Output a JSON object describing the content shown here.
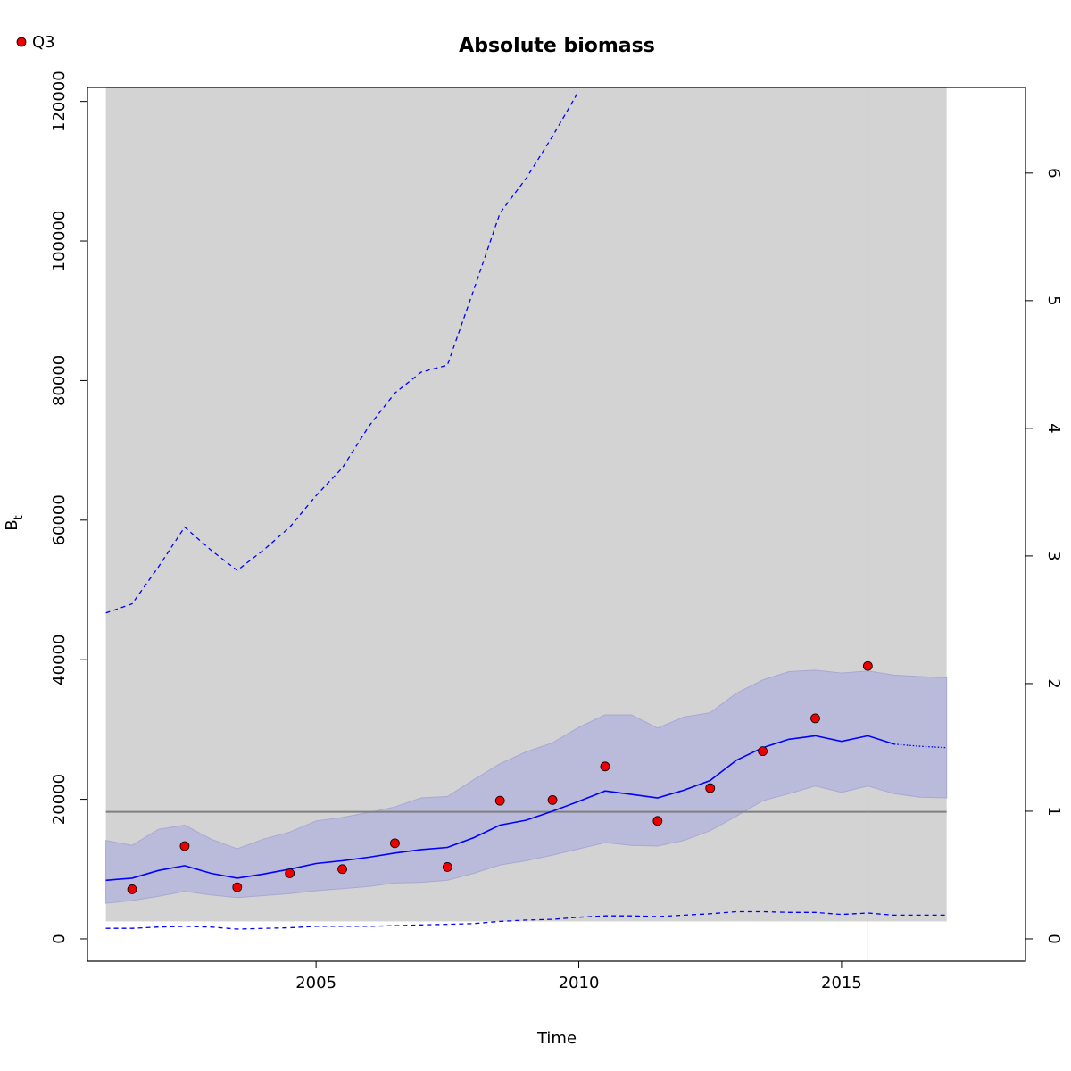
{
  "chart_data": {
    "type": "line",
    "title": "Absolute biomass",
    "xlabel": "Time",
    "ylabel": "B",
    "ylabel_subscript": "t",
    "xlim": [
      2000.65,
      2018.5
    ],
    "ylim": [
      -3200,
      122000
    ],
    "y2lim": [
      -0.175,
      6.67
    ],
    "x_ticks": [
      2005,
      2010,
      2015
    ],
    "y_ticks": [
      0,
      20000,
      40000,
      60000,
      80000,
      100000,
      120000
    ],
    "y2_ticks": [
      0,
      1,
      2,
      3,
      4,
      5,
      6
    ],
    "grid": false,
    "legend": {
      "position": "top-left",
      "entries": [
        {
          "label": "Q3",
          "marker": "circle",
          "color": "#ee0000"
        }
      ]
    },
    "colors": {
      "background_region": "#d3d3d3",
      "ci_band": "#babadb",
      "ci_band_edge": "#a8a8d4",
      "estimate_line": "#0000ff",
      "reference_line": "#7f7f7f",
      "vertical_marker": "#bebebe",
      "points": "#ee0000"
    },
    "background_region": {
      "x": [
        2001.0,
        2017.0
      ],
      "y": [
        2500,
        122000
      ]
    },
    "reference_line_y": 18200,
    "vertical_marker_x": 2015.5,
    "series": [
      {
        "name": "Q3",
        "kind": "points",
        "x": [
          2001.5,
          2002.5,
          2003.5,
          2004.5,
          2005.5,
          2006.5,
          2007.5,
          2008.5,
          2009.5,
          2010.5,
          2011.5,
          2012.5,
          2013.5,
          2014.5,
          2015.5
        ],
        "y": [
          7100,
          13300,
          7400,
          9400,
          10000,
          13700,
          10300,
          19800,
          19900,
          24700,
          16900,
          21600,
          26900,
          31600,
          39100
        ]
      },
      {
        "kind": "estimate",
        "x": [
          2001.0,
          2001.5,
          2002.0,
          2002.5,
          2003.0,
          2003.5,
          2004.0,
          2004.5,
          2005.0,
          2005.5,
          2006.0,
          2006.5,
          2007.0,
          2007.5,
          2008.0,
          2008.5,
          2009.0,
          2009.5,
          2010.0,
          2010.5,
          2011.0,
          2011.5,
          2012.0,
          2012.5,
          2013.0,
          2013.5,
          2014.0,
          2014.5,
          2015.0,
          2015.5,
          2016.0
        ],
        "y": [
          8400,
          8700,
          9800,
          10500,
          9400,
          8700,
          9300,
          10000,
          10800,
          11200,
          11700,
          12300,
          12800,
          13100,
          14500,
          16300,
          17000,
          18300,
          19700,
          21200,
          20700,
          20200,
          21300,
          22700,
          25600,
          27400,
          28600,
          29100,
          28300,
          29100,
          27900
        ]
      },
      {
        "kind": "estimate-forecast",
        "x": [
          2016.0,
          2016.5,
          2017.0
        ],
        "y": [
          27900,
          27600,
          27400
        ]
      },
      {
        "kind": "ci-lower",
        "x": [
          2001.0,
          2001.5,
          2002.0,
          2002.5,
          2003.0,
          2003.5,
          2004.0,
          2004.5,
          2005.0,
          2005.5,
          2006.0,
          2006.5,
          2007.0,
          2007.5,
          2008.0,
          2008.5,
          2009.0,
          2009.5,
          2010.0,
          2010.5,
          2011.0,
          2011.5,
          2012.0,
          2012.5,
          2013.0,
          2013.5,
          2014.0,
          2014.5,
          2015.0,
          2015.5,
          2016.0,
          2016.5,
          2017.0
        ],
        "y": [
          5100,
          5500,
          6100,
          6800,
          6300,
          5900,
          6200,
          6500,
          6900,
          7200,
          7500,
          8000,
          8100,
          8400,
          9400,
          10600,
          11200,
          12000,
          12900,
          13800,
          13400,
          13300,
          14100,
          15500,
          17600,
          19800,
          20800,
          21900,
          21000,
          21900,
          20800,
          20300,
          20200
        ]
      },
      {
        "kind": "ci-upper",
        "x": [
          2001.0,
          2001.5,
          2002.0,
          2002.5,
          2003.0,
          2003.5,
          2004.0,
          2004.5,
          2005.0,
          2005.5,
          2006.0,
          2006.5,
          2007.0,
          2007.5,
          2008.0,
          2008.5,
          2009.0,
          2009.5,
          2010.0,
          2010.5,
          2011.0,
          2011.5,
          2012.0,
          2012.5,
          2013.0,
          2013.5,
          2014.0,
          2014.5,
          2015.0,
          2015.5,
          2016.0,
          2016.5,
          2017.0
        ],
        "y": [
          14100,
          13400,
          15700,
          16300,
          14300,
          12900,
          14300,
          15300,
          16900,
          17400,
          18100,
          18900,
          20200,
          20400,
          22800,
          25100,
          26800,
          28100,
          30300,
          32100,
          32100,
          30200,
          31800,
          32400,
          35200,
          37100,
          38300,
          38500,
          38100,
          38400,
          37800,
          37600,
          37400
        ]
      },
      {
        "kind": "upper-dashed",
        "x": [
          2001.0,
          2001.5,
          2002.0,
          2002.5,
          2003.0,
          2003.5,
          2004.0,
          2004.5,
          2005.0,
          2005.5,
          2006.0,
          2006.5,
          2007.0,
          2007.5,
          2008.0,
          2008.5,
          2009.0,
          2009.5,
          2010.0
        ],
        "y": [
          46700,
          48000,
          53300,
          59000,
          55700,
          52800,
          55700,
          59000,
          63500,
          67500,
          73400,
          78200,
          81200,
          82200,
          93000,
          104000,
          109000,
          115000,
          121500
        ]
      },
      {
        "kind": "lower-dashed",
        "x": [
          2001.0,
          2001.5,
          2002.0,
          2002.5,
          2003.0,
          2003.5,
          2004.0,
          2004.5,
          2005.0,
          2005.5,
          2006.0,
          2006.5,
          2007.0,
          2007.5,
          2008.0,
          2008.5,
          2009.0,
          2009.5,
          2010.0,
          2010.5,
          2011.0,
          2011.5,
          2012.0,
          2012.5,
          2013.0,
          2013.5,
          2014.0,
          2014.5,
          2015.0,
          2015.5,
          2016.0,
          2016.5,
          2017.0
        ],
        "y": [
          1500,
          1500,
          1700,
          1800,
          1700,
          1400,
          1500,
          1600,
          1800,
          1800,
          1800,
          1900,
          2000,
          2100,
          2200,
          2500,
          2700,
          2800,
          3100,
          3300,
          3300,
          3200,
          3400,
          3600,
          3900,
          3900,
          3800,
          3800,
          3500,
          3700,
          3400,
          3400,
          3400
        ]
      }
    ]
  }
}
